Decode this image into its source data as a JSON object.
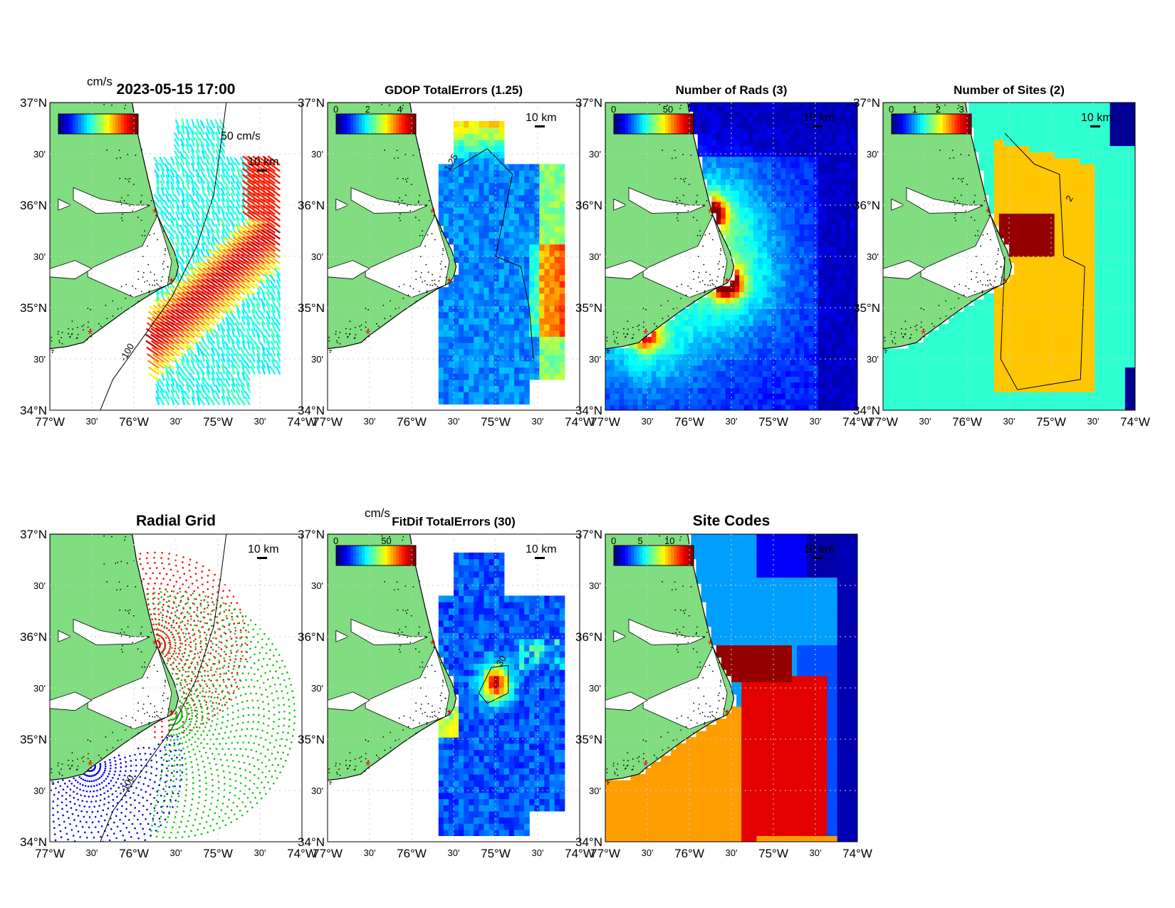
{
  "figure": {
    "timestamp": "2023-05-15 17:00"
  },
  "axes_ticks": {
    "lat_major": [
      "37°N",
      "36°N",
      "35°N",
      "34°N"
    ],
    "lat_minor": "30'",
    "lon_major": [
      "77°W",
      "76°W",
      "75°W",
      "74°W"
    ],
    "lon_minor": "30'"
  },
  "colors": {
    "land": "#80dd80",
    "sea": "#ffffff",
    "coast": "#000000",
    "radar_site": "#ff0000",
    "grid_dots": "#cccccc"
  },
  "radar_sites": [
    {
      "lon": -75.75,
      "lat": 35.92
    },
    {
      "lon": -75.55,
      "lat": 35.24
    },
    {
      "lon": -76.52,
      "lat": 34.74
    }
  ],
  "panels": [
    {
      "id": "velocity",
      "title": "2023-05-15 17:00",
      "colorbar_label": "cm/s",
      "colorbar_ticks": [],
      "scale_labels": [
        "50 cm/s",
        "10 km"
      ],
      "contour_label": "-100",
      "colormap": "jet"
    },
    {
      "id": "gdop",
      "title": "GDOP TotalErrors (1.25)",
      "colorbar_label": "",
      "colorbar_ticks": [
        "0",
        "2",
        "4"
      ],
      "scale_labels": [
        "10 km"
      ],
      "contour_levels": [
        "1.25"
      ],
      "colormap": "jet"
    },
    {
      "id": "nrads",
      "title": "Number of Rads (3)",
      "colorbar_label": "",
      "colorbar_ticks": [
        "0",
        "50"
      ],
      "scale_labels": [
        "10 km"
      ],
      "colormap": "jet"
    },
    {
      "id": "nsites",
      "title": "Number of Sites (2)",
      "colorbar_label": "",
      "colorbar_ticks": [
        "0",
        "1",
        "2",
        "3"
      ],
      "scale_labels": [
        "10 km"
      ],
      "contour_levels": [
        "2"
      ],
      "colormap": "jet"
    },
    {
      "id": "radgrid",
      "title": "Radial Grid",
      "colorbar_label": "",
      "colorbar_ticks": [],
      "scale_labels": [
        "10 km"
      ],
      "contour_label": "-100",
      "site_colors": [
        "#ff0000",
        "#00cc00",
        "#0000ff"
      ]
    },
    {
      "id": "fitdif",
      "title": "FitDif TotalErrors (30)",
      "colorbar_label": "cm/s",
      "colorbar_ticks": [
        "0",
        "50"
      ],
      "scale_labels": [
        "10 km"
      ],
      "contour_levels": [
        "30"
      ],
      "colormap": "jet"
    },
    {
      "id": "sitecodes",
      "title": "Site Codes",
      "colorbar_label": "",
      "colorbar_ticks": [
        "0",
        "5",
        "10"
      ],
      "scale_labels": [
        "10 km"
      ],
      "colormap": "jet"
    }
  ]
}
